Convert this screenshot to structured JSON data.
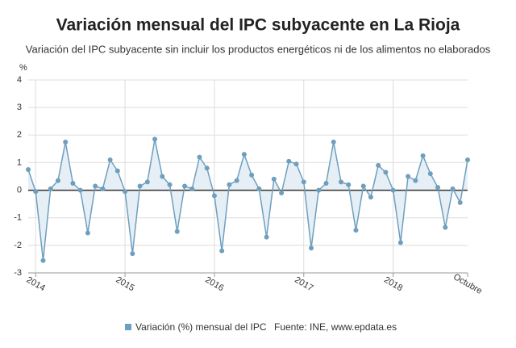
{
  "chart_data": {
    "type": "line",
    "title": "Variación mensual del IPC subyacente en La Rioja",
    "subtitle": "Variación del IPC subyacente sin incluir los productos energéticos ni de los alimentos no elaborados",
    "y_label": "%",
    "source": "Fuente: INE, www.epdata.es",
    "categories": [
      null,
      "2014",
      null,
      null,
      null,
      null,
      null,
      null,
      null,
      null,
      null,
      null,
      null,
      "2015",
      null,
      null,
      null,
      null,
      null,
      null,
      null,
      null,
      null,
      null,
      null,
      "2016",
      null,
      null,
      null,
      null,
      null,
      null,
      null,
      null,
      null,
      null,
      null,
      "2017",
      null,
      null,
      null,
      null,
      null,
      null,
      null,
      null,
      null,
      null,
      null,
      "2018",
      null,
      null,
      null,
      null,
      null,
      null,
      null,
      null,
      null,
      "Octubre"
    ],
    "series": [
      {
        "name": "Variación (%) mensual del IPC",
        "color": "#6f9fbf",
        "values": [
          0.75,
          -0.05,
          -2.55,
          0.05,
          0.35,
          1.75,
          0.25,
          0.0,
          -1.55,
          0.15,
          0.05,
          1.1,
          0.7,
          -0.05,
          -2.3,
          0.15,
          0.3,
          1.85,
          0.5,
          0.2,
          -1.5,
          0.15,
          0.05,
          1.2,
          0.8,
          -0.2,
          -2.2,
          0.2,
          0.35,
          1.3,
          0.55,
          0.05,
          -1.7,
          0.4,
          -0.1,
          1.05,
          0.95,
          0.3,
          -2.1,
          0.0,
          0.25,
          1.75,
          0.3,
          0.2,
          -1.45,
          0.15,
          -0.25,
          0.9,
          0.65,
          0.0,
          -1.9,
          0.5,
          0.35,
          1.25,
          0.6,
          0.1,
          -1.35,
          0.05,
          -0.45,
          1.1
        ]
      }
    ],
    "area_color": "#e6eff5",
    "ylim": [
      -3,
      4
    ],
    "yticks": [
      -3,
      -2,
      -1,
      0,
      1,
      2,
      3,
      4
    ],
    "grid": true
  }
}
